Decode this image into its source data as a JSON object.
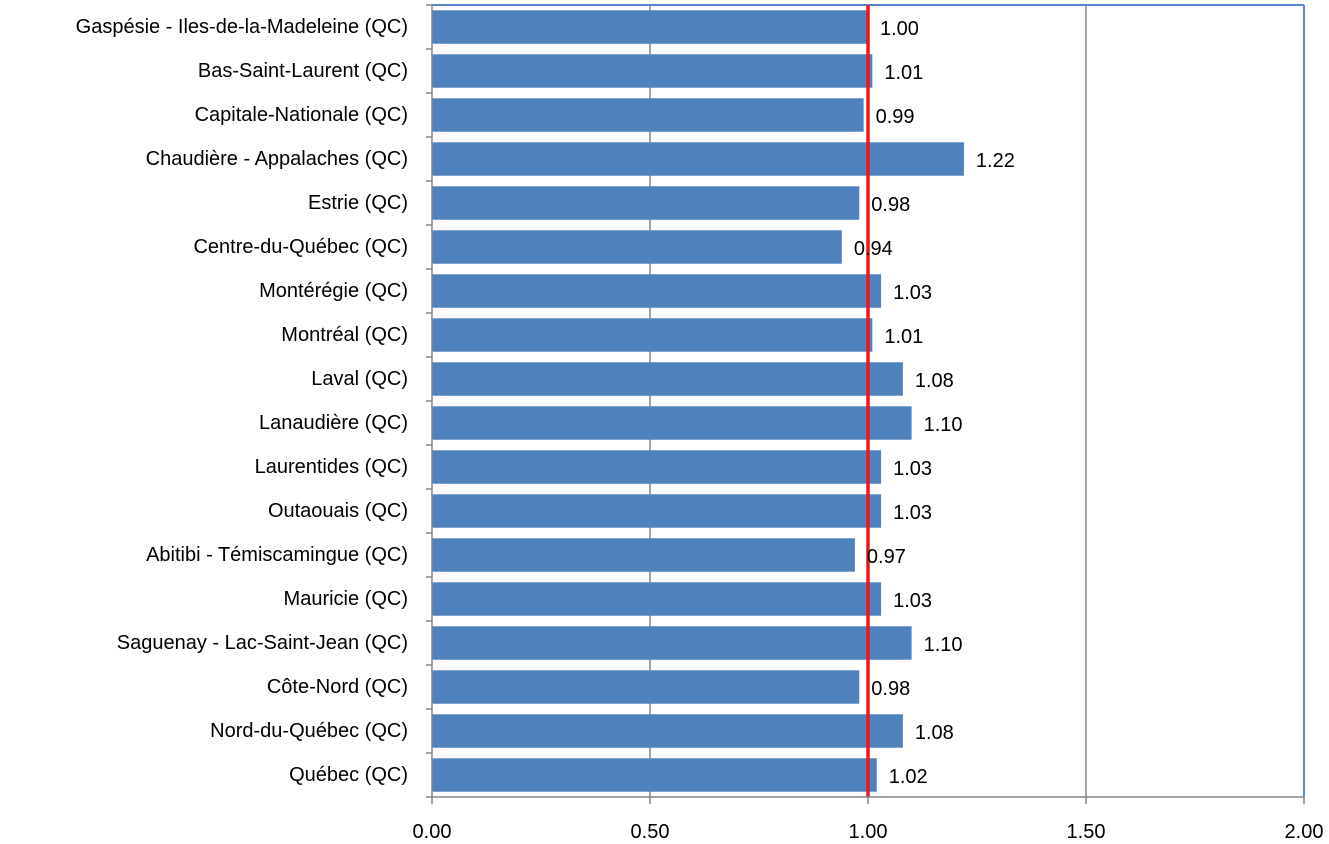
{
  "chart_data": {
    "type": "bar",
    "orientation": "horizontal",
    "title": "",
    "xlabel": "",
    "ylabel": "",
    "xlim": [
      0,
      2
    ],
    "x_ticks": [
      "0.00",
      "0.50",
      "1.00",
      "1.50",
      "2.00"
    ],
    "grid": "vertical",
    "legend": "none",
    "reference_line": {
      "value": 1.0,
      "color": "#e8191b"
    },
    "bar_color": "#4f81bd",
    "categories": [
      "Gaspésie - Iles-de-la-Madeleine (QC)",
      "Bas-Saint-Laurent (QC)",
      "Capitale-Nationale (QC)",
      "Chaudière - Appalaches (QC)",
      "Estrie (QC)",
      "Centre-du-Québec (QC)",
      "Montérégie (QC)",
      "Montréal (QC)",
      "Laval (QC)",
      "Lanaudière (QC)",
      "Laurentides (QC)",
      "Outaouais (QC)",
      "Abitibi - Témiscamingue (QC)",
      "Mauricie (QC)",
      "Saguenay - Lac-Saint-Jean (QC)",
      "Côte-Nord (QC)",
      "Nord-du-Québec (QC)",
      "Québec (QC)"
    ],
    "values": [
      1.0,
      1.01,
      0.99,
      1.22,
      0.98,
      0.94,
      1.03,
      1.01,
      1.08,
      1.1,
      1.03,
      1.03,
      0.97,
      1.03,
      1.1,
      0.98,
      1.08,
      1.02
    ],
    "value_labels": [
      "1.00",
      "1.01",
      "0.99",
      "1.22",
      "0.98",
      "0.94",
      "1.03",
      "1.01",
      "1.08",
      "1.10",
      "1.03",
      "1.03",
      "0.97",
      "1.03",
      "1.10",
      "0.98",
      "1.08",
      "1.02"
    ]
  }
}
